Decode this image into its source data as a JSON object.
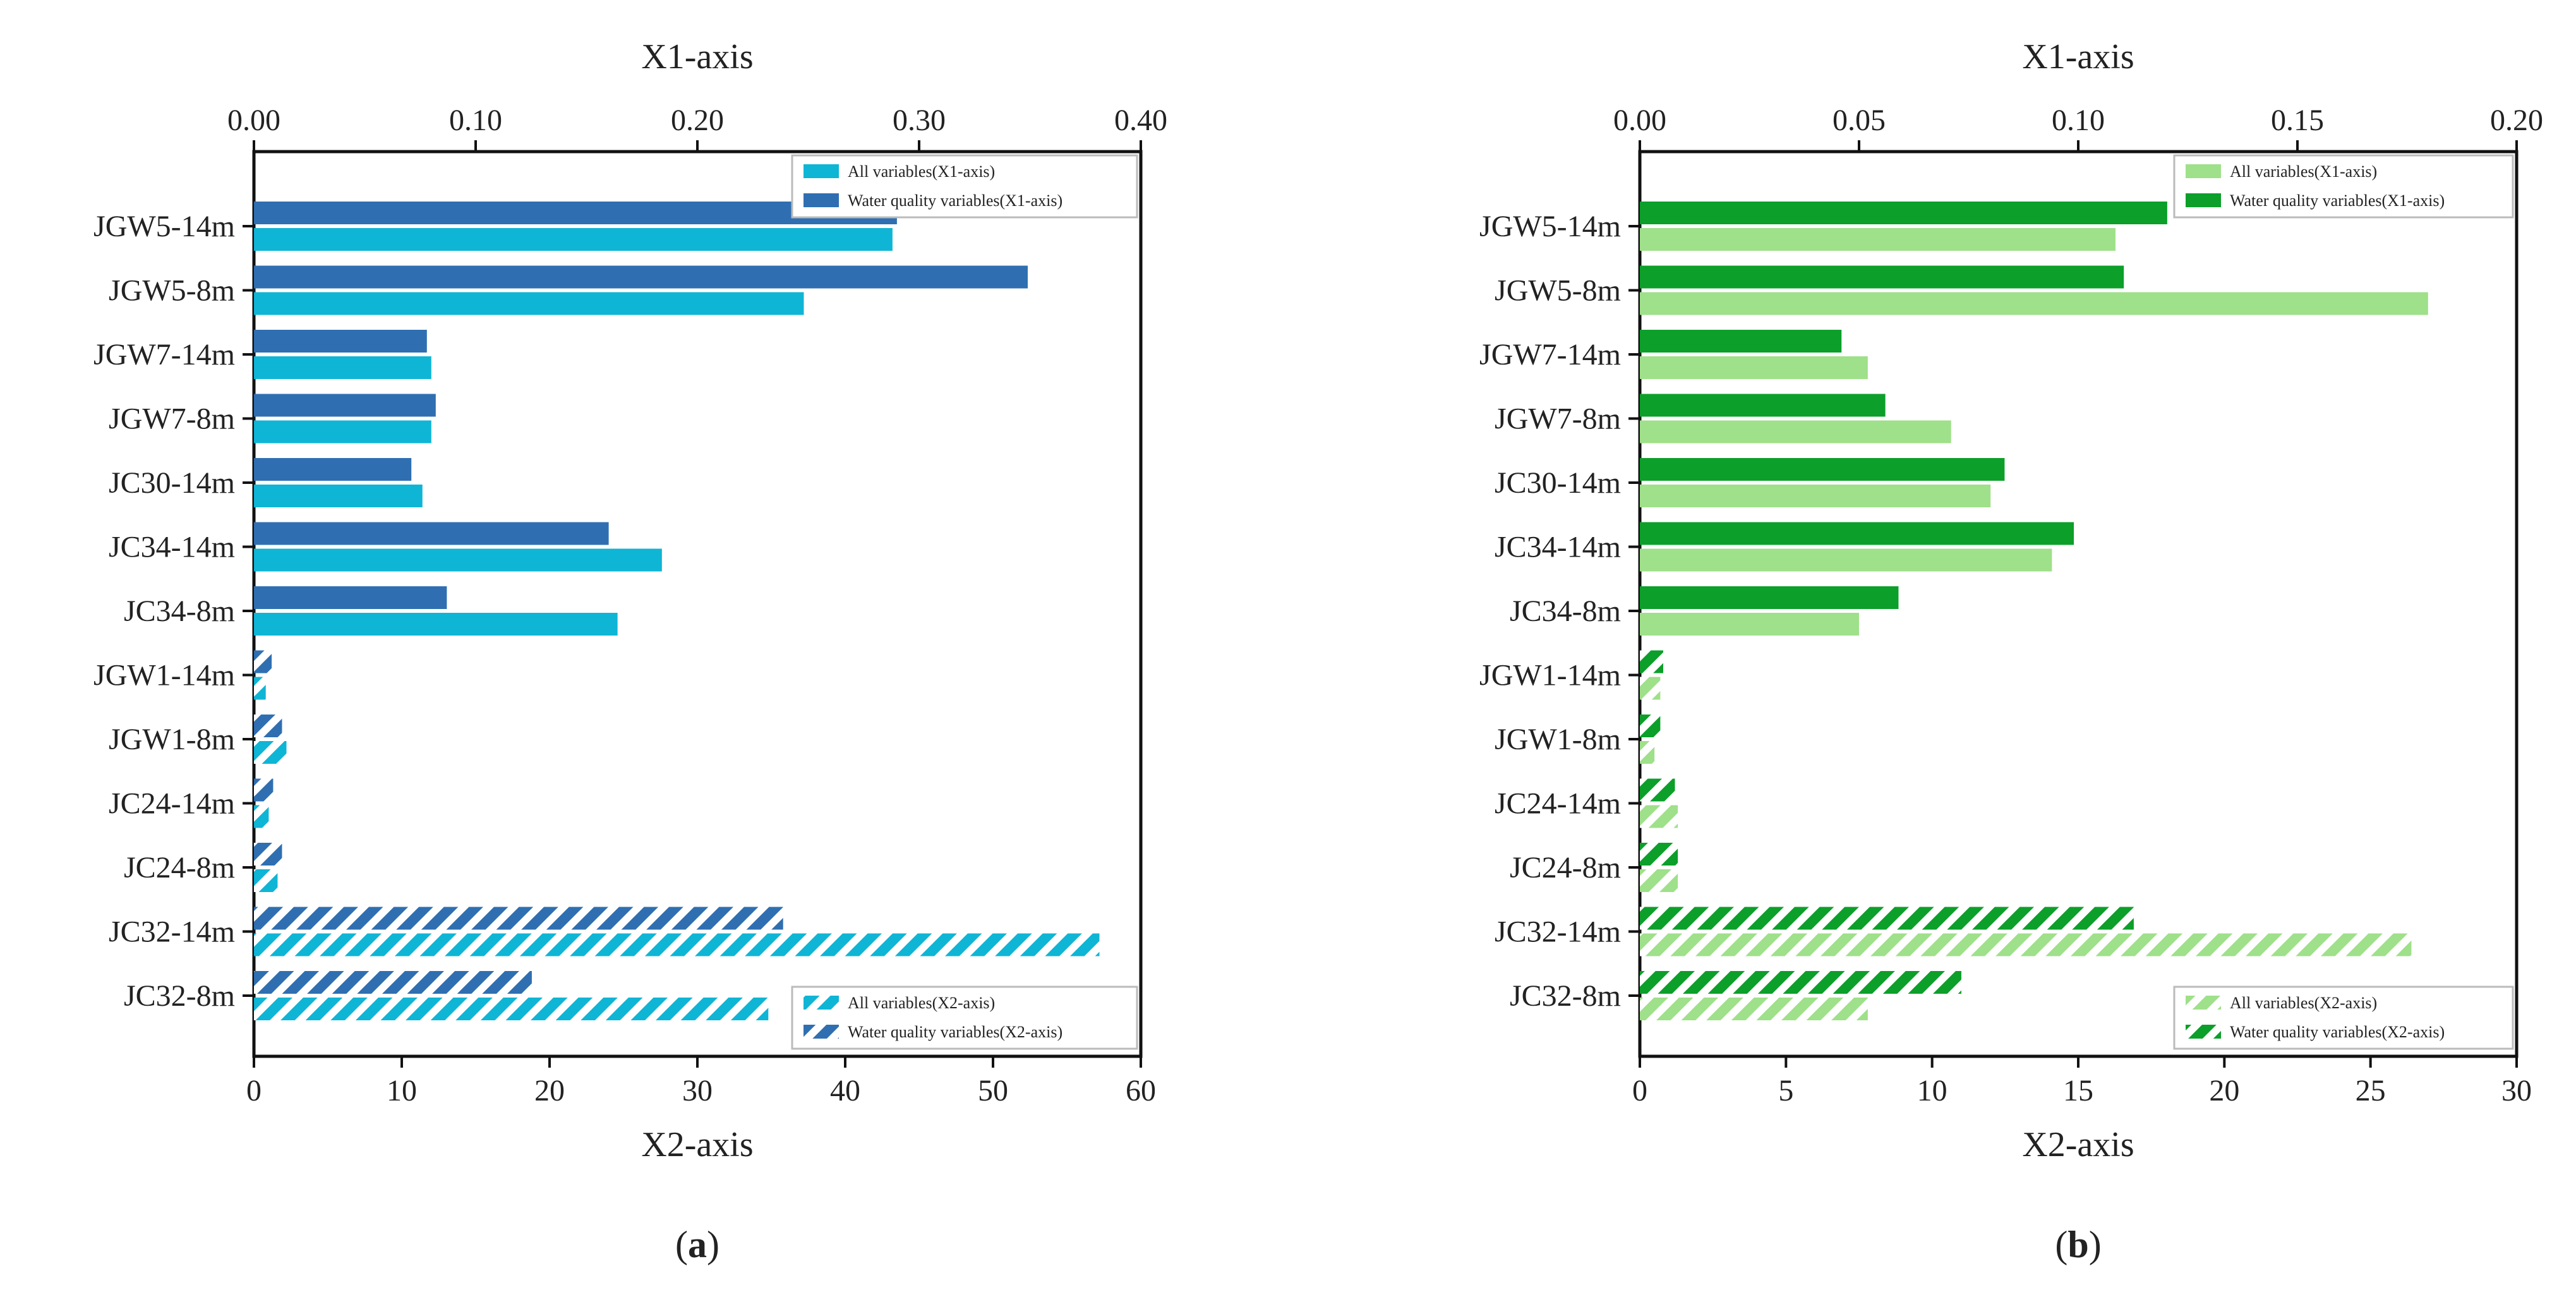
{
  "chart_data": [
    {
      "type": "bar",
      "panel_label": "(a)",
      "panel_letter": "a",
      "x1_title": "X1-axis",
      "x2_title": "X2-axis",
      "x1_lim": [
        0,
        0.4
      ],
      "x1_ticks": [
        "0.00",
        "0.10",
        "0.20",
        "0.30",
        "0.40"
      ],
      "x2_lim": [
        0,
        60
      ],
      "x2_ticks": [
        "0",
        "10",
        "20",
        "30",
        "40",
        "50",
        "60"
      ],
      "categories": [
        "JGW5-14m",
        "JGW5-8m",
        "JGW7-14m",
        "JGW7-8m",
        "JC30-14m",
        "JC34-14m",
        "JC34-8m",
        "JGW1-14m",
        "JGW1-8m",
        "JC24-14m",
        "JC24-8m",
        "JC32-14m",
        "JC32-8m"
      ],
      "series": [
        {
          "name": "All variables(X1-axis)",
          "axis": "x1",
          "color": "#0fb5d5",
          "hatch": false,
          "values": [
            0.288,
            0.248,
            0.08,
            0.08,
            0.076,
            0.184,
            0.164,
            null,
            null,
            null,
            null,
            null,
            null
          ]
        },
        {
          "name": "Water quality variables(X1-axis)",
          "axis": "x1",
          "color": "#2f6fb1",
          "hatch": false,
          "values": [
            0.29,
            0.349,
            0.078,
            0.082,
            0.071,
            0.16,
            0.087,
            null,
            null,
            null,
            null,
            null,
            null
          ]
        },
        {
          "name": "All variables(X2-axis)",
          "axis": "x2",
          "color": "#0fb5d5",
          "hatch": true,
          "values": [
            null,
            null,
            null,
            null,
            null,
            null,
            null,
            0.8,
            2.2,
            1.0,
            1.6,
            57.2,
            34.8
          ]
        },
        {
          "name": "Water quality variables(X2-axis)",
          "axis": "x2",
          "color": "#2f6fb1",
          "hatch": true,
          "values": [
            null,
            null,
            null,
            null,
            null,
            null,
            null,
            1.2,
            1.9,
            1.3,
            1.9,
            35.8,
            18.8
          ]
        }
      ],
      "legend_top": "top-right",
      "legend_bottom": "bottom-right"
    },
    {
      "type": "bar",
      "panel_label": "(b)",
      "panel_letter": "b",
      "x1_title": "X1-axis",
      "x2_title": "X2-axis",
      "x1_lim": [
        0,
        0.2
      ],
      "x1_ticks": [
        "0.00",
        "0.05",
        "0.10",
        "0.15",
        "0.20"
      ],
      "x2_lim": [
        0,
        30
      ],
      "x2_ticks": [
        "0",
        "5",
        "10",
        "15",
        "20",
        "25",
        "30"
      ],
      "categories": [
        "JGW5-14m",
        "JGW5-8m",
        "JGW7-14m",
        "JGW7-8m",
        "JC30-14m",
        "JC34-14m",
        "JC34-8m",
        "JGW1-14m",
        "JGW1-8m",
        "JC24-14m",
        "JC24-8m",
        "JC32-14m",
        "JC32-8m"
      ],
      "series": [
        {
          "name": "All variables(X1-axis)",
          "axis": "x1",
          "color": "#9fe08a",
          "hatch": false,
          "values": [
            0.1085,
            0.1798,
            0.052,
            0.071,
            0.08,
            0.094,
            0.05,
            null,
            null,
            null,
            null,
            null,
            null
          ]
        },
        {
          "name": "Water quality variables(X1-axis)",
          "axis": "x1",
          "color": "#0c9f2a",
          "hatch": false,
          "values": [
            0.1203,
            0.1104,
            0.046,
            0.056,
            0.0832,
            0.099,
            0.059,
            null,
            null,
            null,
            null,
            null,
            null
          ]
        },
        {
          "name": "All variables(X2-axis)",
          "axis": "x2",
          "color": "#9fe08a",
          "hatch": true,
          "values": [
            null,
            null,
            null,
            null,
            null,
            null,
            null,
            0.7,
            0.5,
            1.3,
            1.3,
            26.4,
            7.8
          ]
        },
        {
          "name": "Water quality variables(X2-axis)",
          "axis": "x2",
          "color": "#0c9f2a",
          "hatch": true,
          "values": [
            null,
            null,
            null,
            null,
            null,
            null,
            null,
            0.8,
            0.7,
            1.2,
            1.3,
            16.9,
            11.0
          ]
        }
      ],
      "legend_top": "top-right",
      "legend_bottom": "bottom-right"
    }
  ]
}
